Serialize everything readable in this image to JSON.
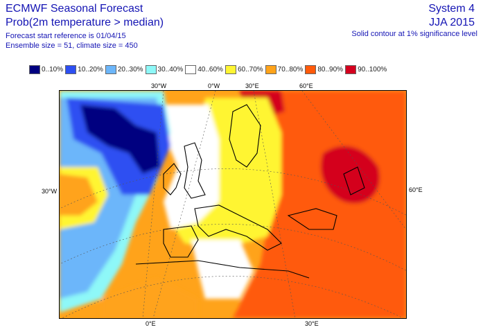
{
  "header": {
    "title": "ECMWF Seasonal Forecast",
    "subtitle": "Prob(2m temperature > median)",
    "forecast_start": "Forecast start reference is 01/04/15",
    "ensemble": "Ensemble size = 51, climate size = 450",
    "system": "System 4",
    "period": "JJA 2015",
    "contour_note": "Solid contour at 1% significance level"
  },
  "legend": [
    {
      "label": "0..10%",
      "color": "#000080"
    },
    {
      "label": "10..20%",
      "color": "#2d4ff2"
    },
    {
      "label": "20..30%",
      "color": "#6cb6fa"
    },
    {
      "label": "30..40%",
      "color": "#8ef8f8"
    },
    {
      "label": "40..60%",
      "color": "#ffffff"
    },
    {
      "label": "60..70%",
      "color": "#fff533"
    },
    {
      "label": "70..80%",
      "color": "#ffa31a"
    },
    {
      "label": "80..90%",
      "color": "#ff5a0a"
    },
    {
      "label": "90..100%",
      "color": "#d4001e"
    }
  ],
  "map": {
    "region": "Europe / North Atlantic",
    "ticks": {
      "top": [
        "30°W",
        "0°W",
        "30°E",
        "60°E"
      ],
      "left": "30°W",
      "right": "60°E",
      "bottom": [
        "0°E",
        "30°E"
      ]
    }
  }
}
